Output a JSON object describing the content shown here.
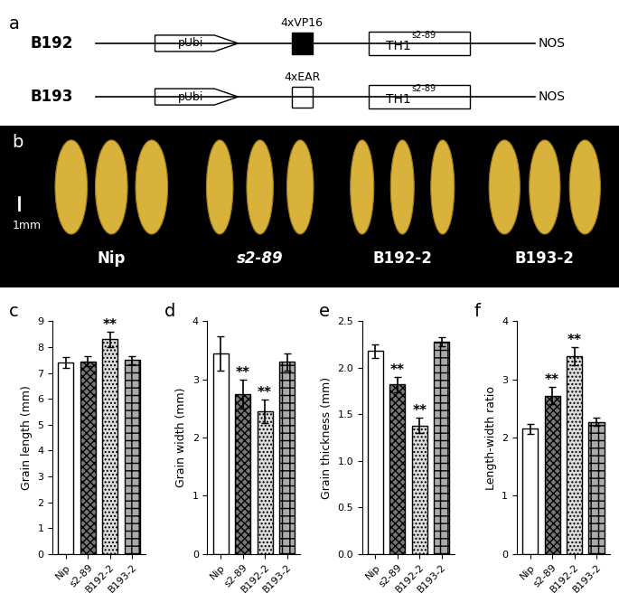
{
  "panel_labels": [
    "a",
    "b",
    "c",
    "d",
    "e",
    "f"
  ],
  "construct_diagram": {
    "constructs": [
      {
        "name": "B192",
        "promoter": "pUbi",
        "domain": "4xVP16",
        "color": "#000000",
        "gene": "TH1",
        "gene_superscript": "s2-89",
        "terminator": "NOS"
      },
      {
        "name": "B193",
        "promoter": "pUbi",
        "domain": "4xEAR",
        "color": "#ffffff",
        "gene": "TH1",
        "gene_superscript": "s2-89",
        "terminator": "NOS"
      }
    ]
  },
  "grain_photo": {
    "scale_bar": "1mm",
    "samples": [
      "Nip",
      "s2-89",
      "B192-2",
      "B193-2"
    ]
  },
  "chart_data": [
    {
      "type": "bar",
      "categories": [
        "Nip",
        "s2-89",
        "B192-2",
        "B193-2"
      ],
      "values": [
        7.4,
        7.45,
        8.3,
        7.5
      ],
      "errors": [
        0.2,
        0.2,
        0.3,
        0.15
      ],
      "significance": [
        null,
        null,
        "**",
        null
      ],
      "y_label": "Grain length (mm)",
      "ylim": [
        0,
        9
      ],
      "yticks": [
        0,
        1,
        2,
        3,
        4,
        5,
        6,
        7,
        8,
        9
      ],
      "colors": [
        "#ffffff",
        "#777777",
        "#dddddd",
        "#aaaaaa"
      ]
    },
    {
      "type": "bar",
      "categories": [
        "Nip",
        "s2-89",
        "B192-2",
        "B193-2"
      ],
      "values": [
        3.45,
        2.75,
        2.45,
        3.3
      ],
      "errors": [
        0.3,
        0.25,
        0.2,
        0.15
      ],
      "significance": [
        null,
        "**",
        "**",
        null
      ],
      "y_label": "Grain width (mm)",
      "ylim": [
        0,
        4
      ],
      "yticks": [
        0,
        1,
        2,
        3,
        4
      ],
      "colors": [
        "#ffffff",
        "#777777",
        "#dddddd",
        "#aaaaaa"
      ]
    },
    {
      "type": "bar",
      "categories": [
        "Nip",
        "s2-89",
        "B192-2",
        "B193-2"
      ],
      "values": [
        2.18,
        1.82,
        1.38,
        2.28
      ],
      "errors": [
        0.07,
        0.08,
        0.08,
        0.05
      ],
      "significance": [
        null,
        "**",
        "**",
        null
      ],
      "y_label": "Grain thickness (mm)",
      "ylim": [
        0.0,
        2.5
      ],
      "yticks": [
        0.0,
        0.5,
        1.0,
        1.5,
        2.0,
        2.5
      ],
      "colors": [
        "#ffffff",
        "#777777",
        "#dddddd",
        "#aaaaaa"
      ]
    },
    {
      "type": "bar",
      "categories": [
        "Nip",
        "s2-89",
        "B192-2",
        "B193-2"
      ],
      "values": [
        2.15,
        2.72,
        3.4,
        2.27
      ],
      "errors": [
        0.08,
        0.15,
        0.15,
        0.07
      ],
      "significance": [
        null,
        "**",
        "**",
        null
      ],
      "y_label": "Length-width ratio",
      "ylim": [
        0,
        4
      ],
      "yticks": [
        0,
        1,
        2,
        3,
        4
      ],
      "colors": [
        "#ffffff",
        "#777777",
        "#dddddd",
        "#aaaaaa"
      ]
    }
  ]
}
